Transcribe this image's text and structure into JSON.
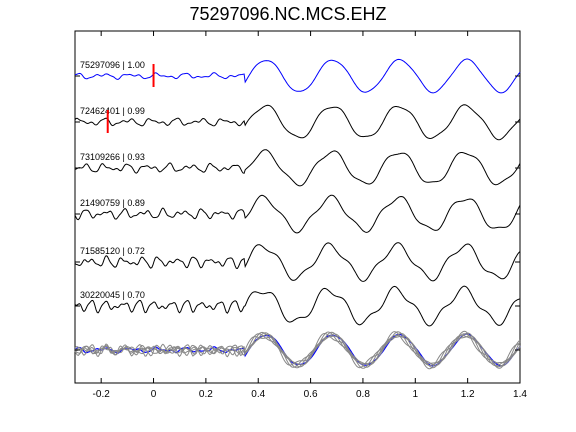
{
  "chart_data": {
    "type": "line",
    "title": "75297096.NC.MCS.EHZ",
    "xlabel": "",
    "ylabel": "",
    "xlim": [
      -0.3,
      1.4
    ],
    "x_ticks": [
      -0.2,
      0,
      0.2,
      0.4,
      0.6,
      0.8,
      1,
      1.2,
      1.4
    ],
    "x_tick_labels": [
      "-0.2",
      "0",
      "0.2",
      "0.4",
      "0.6",
      "0.8",
      "1",
      "1.2",
      "1.4"
    ],
    "grid": false,
    "trace_color_reference": "#0000ff",
    "trace_color_other": "#000000",
    "stack_color_other": "#888888",
    "pick_color": "#ff0000",
    "series": [
      {
        "name": "75297096 | 1.00",
        "pick_x": 0.0,
        "reference": true
      },
      {
        "name": "72462401 | 0.99",
        "pick_x": -0.175,
        "reference": false
      },
      {
        "name": "73109266 | 0.93",
        "pick_x": null,
        "reference": false
      },
      {
        "name": "21490759 | 0.89",
        "pick_x": null,
        "reference": false
      },
      {
        "name": "71585120 | 0.72",
        "pick_x": null,
        "reference": false
      },
      {
        "name": "30220045 | 0.70",
        "pick_x": null,
        "reference": false
      }
    ],
    "stack": {
      "label": "",
      "shown": true
    }
  }
}
